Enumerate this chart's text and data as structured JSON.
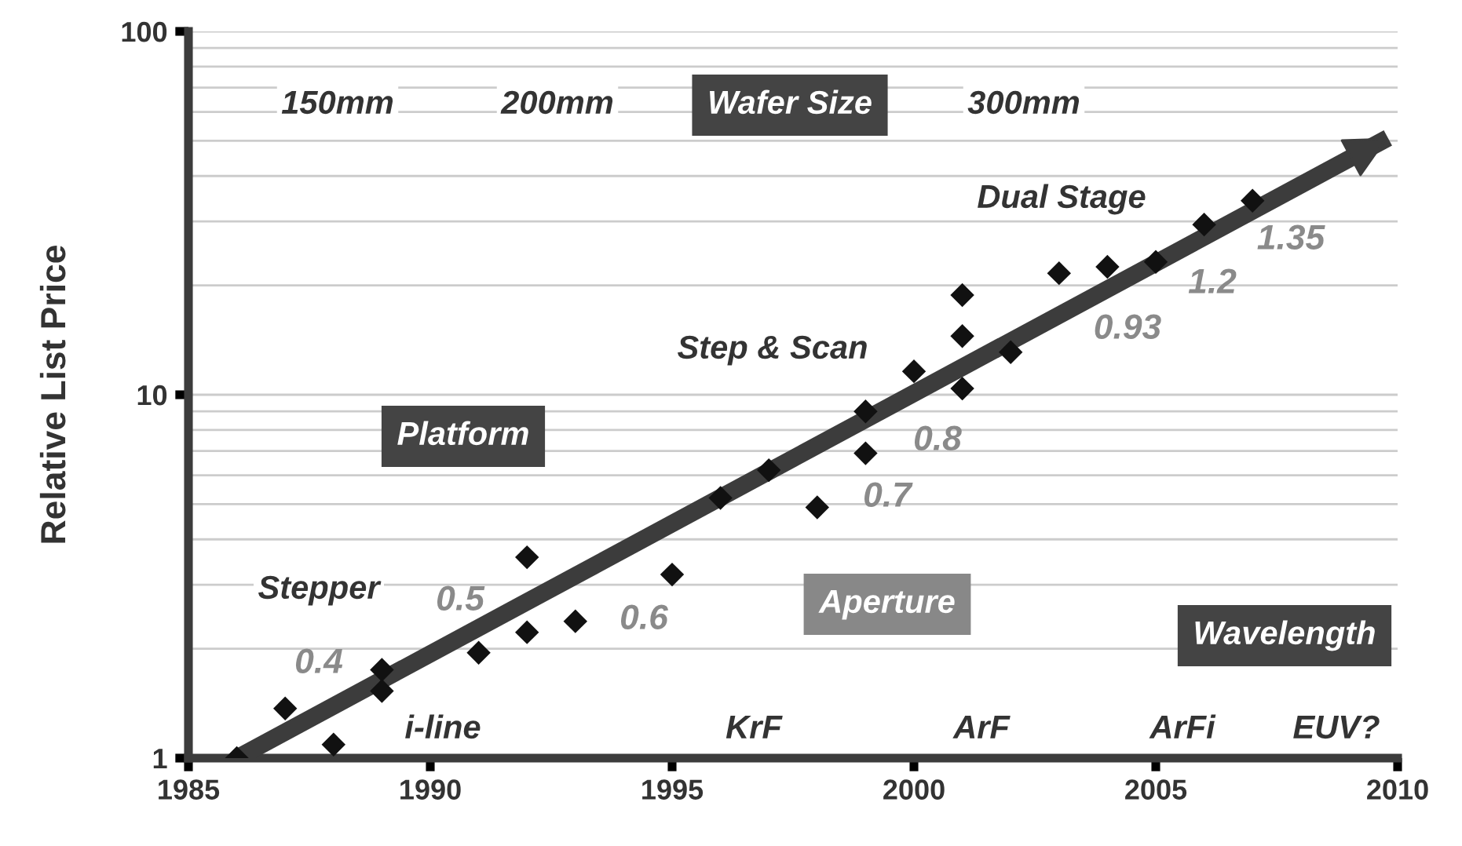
{
  "chart_data": {
    "type": "scatter",
    "ylabel": "Relative List Price",
    "log": "y",
    "grid": "y",
    "xlim": [
      1985,
      2010
    ],
    "xticks": [
      1985,
      1990,
      1995,
      2000,
      2005,
      2010
    ],
    "ylim": [
      1,
      100
    ],
    "yticks": [
      1,
      10,
      100
    ],
    "series": [
      {
        "marker": "diamond",
        "color": "#111111",
        "x": [
          1986,
          1987,
          1988,
          1989,
          1989,
          1991,
          1992,
          1992,
          1993,
          1995,
          1996,
          1997,
          1998,
          1999,
          1999,
          2000,
          2001,
          2001,
          2001,
          2002,
          2003,
          2004,
          2005,
          2006,
          2007
        ],
        "values": [
          1.0,
          1.37,
          1.09,
          1.75,
          1.53,
          1.95,
          3.57,
          2.22,
          2.38,
          3.2,
          5.2,
          6.2,
          4.9,
          6.9,
          9.0,
          11.6,
          18.8,
          14.5,
          10.4,
          13.1,
          21.6,
          22.5,
          23.2,
          29.4,
          34.2
        ]
      },
      {
        "type": "line",
        "color": "#3c3c3c",
        "x": [
          1986,
          2009.8
        ],
        "values": [
          1,
          50.9
        ]
      }
    ],
    "annotations": [
      "150mm",
      "200mm",
      "Wafer Size",
      "300mm",
      "Dual Stage",
      "1.35",
      "1.2",
      "0.93",
      "Step & Scan",
      "0.8",
      "0.7",
      "Platform",
      "Stepper",
      "0.5",
      "0.6",
      "0.4",
      "Aperture",
      "Wavelength",
      "i-line",
      "KrF",
      "ArF",
      "ArFi",
      "EUV?"
    ]
  }
}
